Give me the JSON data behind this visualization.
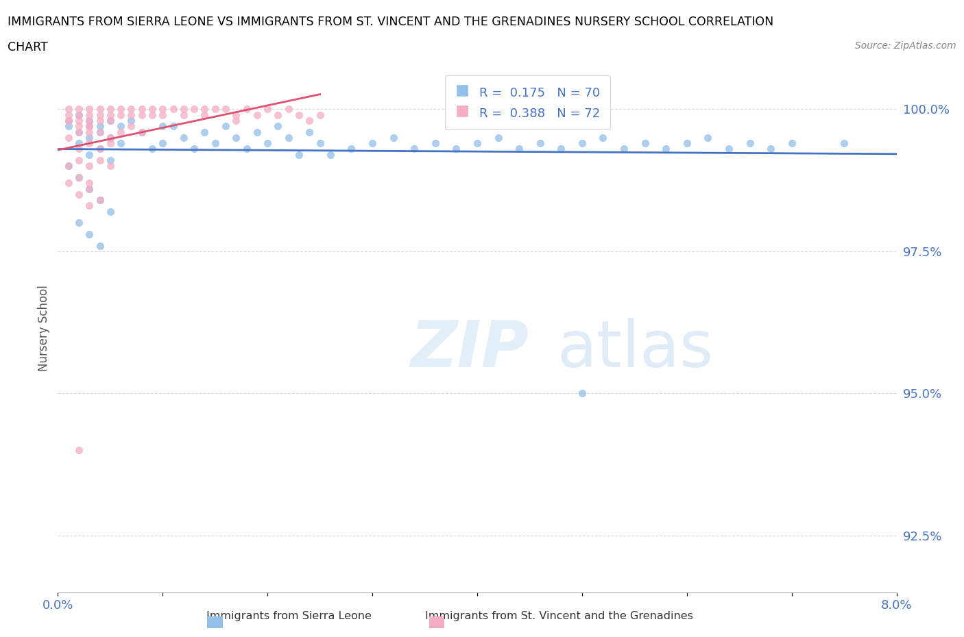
{
  "title_line1": "IMMIGRANTS FROM SIERRA LEONE VS IMMIGRANTS FROM ST. VINCENT AND THE GRENADINES NURSERY SCHOOL CORRELATION",
  "title_line2": "CHART",
  "source_text": "Source: ZipAtlas.com",
  "ylabel": "Nursery School",
  "xlim": [
    0.0,
    0.08
  ],
  "ylim": [
    0.915,
    1.008
  ],
  "xticks": [
    0.0,
    0.01,
    0.02,
    0.03,
    0.04,
    0.05,
    0.06,
    0.07,
    0.08
  ],
  "xticklabels": [
    "0.0%",
    "",
    "",
    "",
    "",
    "",
    "",
    "",
    "8.0%"
  ],
  "yticks": [
    0.925,
    0.95,
    0.975,
    1.0
  ],
  "yticklabels": [
    "92.5%",
    "95.0%",
    "97.5%",
    "100.0%"
  ],
  "sierra_leone_color": "#92c0e8",
  "st_vincent_color": "#f4aec4",
  "trend_sierra_color": "#4472c4",
  "trend_vincent_color": "#e05070",
  "R_sierra": 0.175,
  "N_sierra": 70,
  "R_vincent": 0.388,
  "N_vincent": 72,
  "legend_label_sierra": "Immigrants from Sierra Leone",
  "legend_label_vincent": "Immigrants from St. Vincent and the Grenadines",
  "watermark_zip": "ZIP",
  "watermark_atlas": "atlas",
  "sierra_leone_x": [
    0.001,
    0.001,
    0.002,
    0.002,
    0.002,
    0.003,
    0.003,
    0.003,
    0.003,
    0.004,
    0.004,
    0.004,
    0.005,
    0.005,
    0.005,
    0.006,
    0.006,
    0.007,
    0.008,
    0.009,
    0.01,
    0.01,
    0.011,
    0.012,
    0.013,
    0.014,
    0.015,
    0.016,
    0.017,
    0.018,
    0.019,
    0.02,
    0.021,
    0.022,
    0.023,
    0.024,
    0.025,
    0.026,
    0.028,
    0.03,
    0.032,
    0.034,
    0.036,
    0.038,
    0.04,
    0.042,
    0.044,
    0.046,
    0.048,
    0.05,
    0.052,
    0.054,
    0.056,
    0.058,
    0.06,
    0.062,
    0.064,
    0.066,
    0.068,
    0.07,
    0.001,
    0.002,
    0.003,
    0.004,
    0.005,
    0.002,
    0.003,
    0.004,
    0.05,
    0.075
  ],
  "sierra_leone_y": [
    0.998,
    0.997,
    0.999,
    0.996,
    0.994,
    0.998,
    0.997,
    0.995,
    0.992,
    0.997,
    0.996,
    0.993,
    0.998,
    0.995,
    0.991,
    0.997,
    0.994,
    0.998,
    0.996,
    0.993,
    0.997,
    0.994,
    0.997,
    0.995,
    0.993,
    0.996,
    0.994,
    0.997,
    0.995,
    0.993,
    0.996,
    0.994,
    0.997,
    0.995,
    0.992,
    0.996,
    0.994,
    0.992,
    0.993,
    0.994,
    0.995,
    0.993,
    0.994,
    0.993,
    0.994,
    0.995,
    0.993,
    0.994,
    0.993,
    0.994,
    0.995,
    0.993,
    0.994,
    0.993,
    0.994,
    0.995,
    0.993,
    0.994,
    0.993,
    0.994,
    0.99,
    0.988,
    0.986,
    0.984,
    0.982,
    0.98,
    0.978,
    0.976,
    0.95,
    0.994
  ],
  "st_vincent_x": [
    0.001,
    0.001,
    0.001,
    0.002,
    0.002,
    0.002,
    0.002,
    0.003,
    0.003,
    0.003,
    0.003,
    0.003,
    0.004,
    0.004,
    0.004,
    0.005,
    0.005,
    0.005,
    0.006,
    0.006,
    0.007,
    0.007,
    0.008,
    0.008,
    0.009,
    0.009,
    0.01,
    0.01,
    0.011,
    0.012,
    0.012,
    0.013,
    0.014,
    0.014,
    0.015,
    0.016,
    0.017,
    0.017,
    0.018,
    0.019,
    0.02,
    0.021,
    0.022,
    0.023,
    0.024,
    0.025,
    0.001,
    0.002,
    0.003,
    0.004,
    0.005,
    0.006,
    0.007,
    0.008,
    0.002,
    0.003,
    0.004,
    0.005,
    0.001,
    0.002,
    0.003,
    0.004,
    0.005,
    0.002,
    0.001,
    0.003,
    0.003,
    0.002,
    0.004,
    0.003,
    0.002,
    0.001
  ],
  "st_vincent_y": [
    1.0,
    0.999,
    0.998,
    1.0,
    0.999,
    0.998,
    0.997,
    1.0,
    0.999,
    0.998,
    0.997,
    0.996,
    1.0,
    0.999,
    0.998,
    1.0,
    0.999,
    0.998,
    1.0,
    0.999,
    1.0,
    0.999,
    1.0,
    0.999,
    1.0,
    0.999,
    1.0,
    0.999,
    1.0,
    1.0,
    0.999,
    1.0,
    1.0,
    0.999,
    1.0,
    1.0,
    0.999,
    0.998,
    1.0,
    0.999,
    1.0,
    0.999,
    1.0,
    0.999,
    0.998,
    0.999,
    0.995,
    0.996,
    0.997,
    0.996,
    0.995,
    0.996,
    0.997,
    0.996,
    0.993,
    0.994,
    0.993,
    0.994,
    0.99,
    0.991,
    0.99,
    0.991,
    0.99,
    0.988,
    0.987,
    0.987,
    0.986,
    0.985,
    0.984,
    0.983,
    0.94,
    0.998
  ]
}
